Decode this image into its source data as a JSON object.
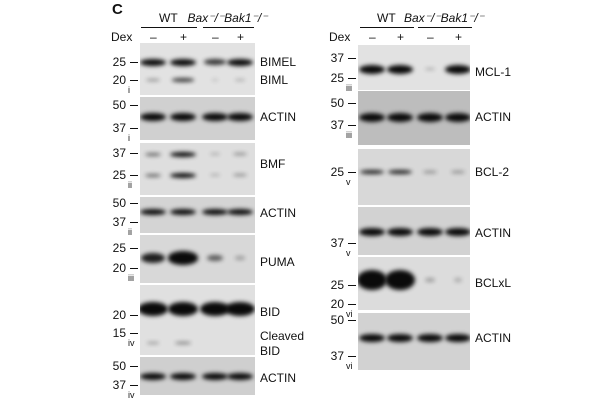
{
  "panel_letter": "C",
  "header": {
    "wt": "WT",
    "ko": "Bax⁻/⁻Bak1⁻/⁻",
    "dex": "Dex",
    "lanes": [
      "–",
      "+",
      "–",
      "+"
    ]
  },
  "left": [
    {
      "labels": [
        "BIMEL",
        "BIML"
      ],
      "markers": [
        "25",
        "20"
      ],
      "roman": "i"
    },
    {
      "labels": [
        "ACTIN"
      ],
      "markers": [
        "50",
        "37"
      ],
      "roman": "i"
    },
    {
      "labels": [
        "BMF"
      ],
      "markers": [
        "37",
        "25"
      ],
      "roman": "ii"
    },
    {
      "labels": [
        "ACTIN"
      ],
      "markers": [
        "50",
        "37"
      ],
      "roman": "ii"
    },
    {
      "labels": [
        "PUMA"
      ],
      "markers": [
        "25",
        "20"
      ],
      "roman": "iii"
    },
    {
      "labels": [
        "BID",
        "Cleaved",
        "BID"
      ],
      "markers": [
        "20",
        "15"
      ],
      "roman": "iv"
    },
    {
      "labels": [
        "ACTIN"
      ],
      "markers": [
        "50",
        "37"
      ],
      "roman": "iv"
    }
  ],
  "right": [
    {
      "labels": [
        "MCL-1"
      ],
      "markers": [
        "37",
        "25"
      ],
      "roman": "iii"
    },
    {
      "labels": [
        "ACTIN"
      ],
      "markers": [
        "50",
        "37"
      ],
      "roman": "iii"
    },
    {
      "labels": [
        "BCL-2"
      ],
      "markers": [
        "25"
      ],
      "roman": "v"
    },
    {
      "labels": [
        "ACTIN"
      ],
      "markers": [
        "37"
      ],
      "roman": "v"
    },
    {
      "labels": [
        "BCLxL"
      ],
      "markers": [
        "25",
        "20"
      ],
      "roman": "vi"
    },
    {
      "labels": [
        "ACTIN"
      ],
      "markers": [
        "50",
        "37"
      ],
      "roman": "vi"
    }
  ]
}
